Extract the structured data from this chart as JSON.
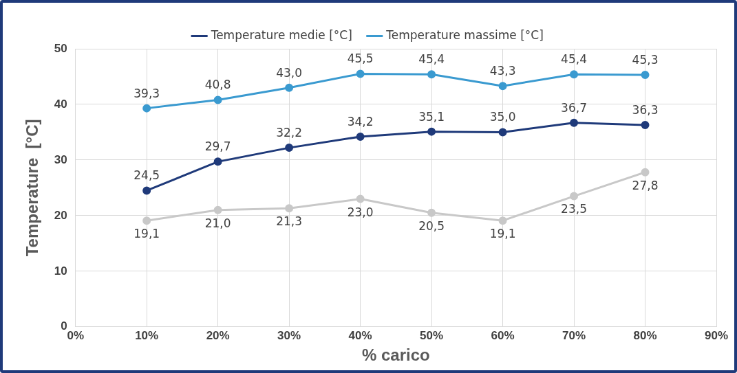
{
  "chart_data": {
    "type": "line",
    "xlabel": "% carico",
    "ylabel": "Temperature  [°C]",
    "x": [
      10,
      20,
      30,
      40,
      50,
      60,
      70,
      80
    ],
    "xlim": [
      0,
      90
    ],
    "xticks": [
      {
        "value": 0,
        "label": "0%"
      },
      {
        "value": 10,
        "label": "10%"
      },
      {
        "value": 20,
        "label": "20%"
      },
      {
        "value": 30,
        "label": "30%"
      },
      {
        "value": 40,
        "label": "40%"
      },
      {
        "value": 50,
        "label": "50%"
      },
      {
        "value": 60,
        "label": "60%"
      },
      {
        "value": 70,
        "label": "70%"
      },
      {
        "value": 80,
        "label": "80%"
      },
      {
        "value": 90,
        "label": "90%"
      }
    ],
    "ylim": [
      0,
      50
    ],
    "yticks": [
      0,
      10,
      20,
      30,
      40,
      50
    ],
    "series": [
      {
        "name": "Temperature medie [°C]",
        "color": "#1f3a7a",
        "values": [
          24.5,
          29.7,
          32.2,
          34.2,
          35.1,
          35.0,
          36.7,
          36.3
        ],
        "value_labels": [
          "24,5",
          "29,7",
          "32,2",
          "34,2",
          "35,1",
          "35,0",
          "36,7",
          "36,3"
        ]
      },
      {
        "name": "Temperature massime [°C]",
        "color": "#3a9ad0",
        "values": [
          39.3,
          40.8,
          43.0,
          45.5,
          45.4,
          43.3,
          45.4,
          45.3
        ],
        "value_labels": [
          "39,3",
          "40,8",
          "43,0",
          "45,5",
          "45,4",
          "43,3",
          "45,4",
          "45,3"
        ]
      },
      {
        "color": "#c8c8c8",
        "values": [
          19.1,
          21.0,
          21.3,
          23.0,
          20.5,
          19.1,
          23.5,
          27.8
        ],
        "value_labels": [
          "19,1",
          "21,0",
          "21,3",
          "23,0",
          "20,5",
          "19,1",
          "23,5",
          "27,8"
        ]
      }
    ],
    "grid": true,
    "legend": "top",
    "marker": "circle",
    "line_style": "solid"
  }
}
